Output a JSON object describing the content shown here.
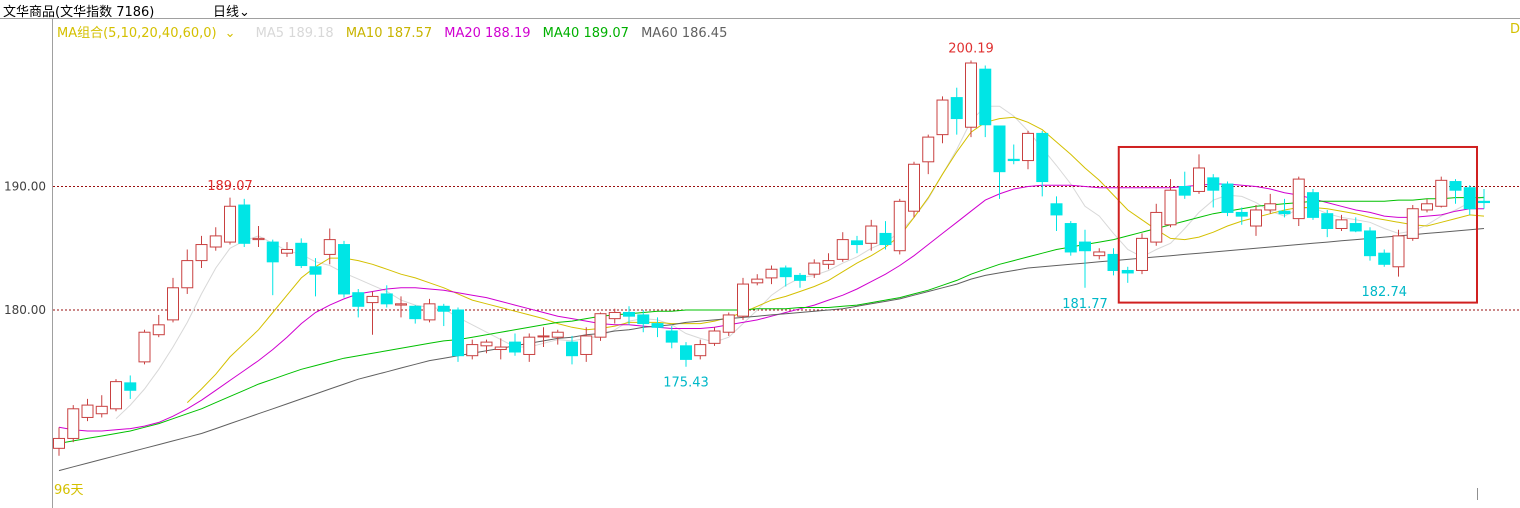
{
  "header": {
    "title": "文华商品(文华指数 7186)",
    "period": "日线",
    "period_chevron_icon": "chevron-down-icon"
  },
  "ma_legend": {
    "combo_label": "MA组合(5,10,20,40,60,0)",
    "combo_chevron_icon": "chevron-down-icon",
    "items": [
      {
        "label": "MA5 189.18",
        "color": "#d8d8d8"
      },
      {
        "label": "MA10 187.57",
        "color": "#d4c000"
      },
      {
        "label": "MA20 188.19",
        "color": "#d000d0"
      },
      {
        "label": "MA40 189.07",
        "color": "#00c000"
      },
      {
        "label": "MA60 186.45",
        "color": "#606060"
      }
    ],
    "edge_label": "D"
  },
  "colors": {
    "up": "#c84040",
    "down": "#00e5e5",
    "ref_line": "#9a1010",
    "highlight_box": "#d02020",
    "axis_text": "#404040",
    "label_red": "#e03030",
    "label_cyan": "#00b8c8"
  },
  "chart_data": {
    "type": "candlestick",
    "title": "",
    "ylim": [
      166,
      202
    ],
    "yticks": [
      {
        "value": 190,
        "label": "190.00"
      },
      {
        "value": 180,
        "label": "180.00"
      }
    ],
    "ref_lines": [
      190,
      180
    ],
    "candles": [
      [
        168.8,
        169.6,
        170.5,
        168.2
      ],
      [
        169.6,
        172.0,
        172.3,
        169.3
      ],
      [
        171.3,
        172.3,
        172.8,
        171.0
      ],
      [
        171.6,
        172.2,
        173.1,
        171.3
      ],
      [
        172.0,
        174.2,
        174.4,
        171.8
      ],
      [
        174.1,
        173.5,
        174.7,
        172.8
      ],
      [
        175.8,
        178.2,
        178.4,
        175.6
      ],
      [
        178.0,
        178.8,
        179.6,
        177.8
      ],
      [
        179.2,
        181.8,
        182.6,
        179.0
      ],
      [
        181.8,
        184.0,
        184.9,
        181.3
      ],
      [
        184.0,
        185.3,
        186.0,
        183.4
      ],
      [
        185.1,
        186.0,
        186.7,
        184.8
      ],
      [
        185.5,
        188.4,
        189.1,
        185.3
      ],
      [
        188.5,
        185.4,
        189.0,
        185.1
      ],
      [
        185.7,
        185.8,
        186.8,
        185.1
      ],
      [
        185.5,
        183.9,
        185.7,
        181.2
      ],
      [
        184.6,
        184.9,
        185.5,
        184.3
      ],
      [
        185.4,
        183.6,
        185.8,
        183.4
      ],
      [
        183.5,
        182.9,
        184.2,
        181.1
      ],
      [
        184.5,
        185.7,
        186.6,
        183.7
      ],
      [
        185.3,
        181.3,
        185.6,
        181.0
      ],
      [
        181.4,
        180.3,
        181.7,
        179.4
      ],
      [
        180.6,
        181.1,
        181.5,
        178.0
      ],
      [
        181.3,
        180.5,
        182.0,
        180.2
      ],
      [
        180.4,
        180.5,
        181.1,
        179.4
      ],
      [
        180.3,
        179.3,
        180.4,
        178.9
      ],
      [
        179.2,
        180.5,
        180.9,
        179.0
      ],
      [
        180.3,
        179.9,
        180.5,
        178.7
      ],
      [
        180.0,
        176.3,
        180.2,
        175.8
      ],
      [
        176.3,
        177.2,
        177.6,
        176.0
      ],
      [
        177.1,
        177.4,
        177.6,
        176.5
      ],
      [
        176.8,
        177.0,
        177.7,
        176.0
      ],
      [
        177.4,
        176.6,
        178.1,
        176.3
      ],
      [
        176.4,
        177.8,
        178.1,
        175.8
      ],
      [
        177.9,
        177.9,
        178.6,
        177.0
      ],
      [
        177.8,
        178.2,
        178.4,
        177.2
      ],
      [
        177.4,
        176.3,
        177.9,
        175.6
      ],
      [
        176.4,
        177.9,
        178.6,
        175.8
      ],
      [
        177.8,
        179.7,
        179.8,
        177.5
      ],
      [
        179.3,
        179.8,
        180.1,
        178.9
      ],
      [
        179.8,
        179.5,
        180.3,
        178.8
      ],
      [
        179.6,
        178.9,
        180.0,
        178.2
      ],
      [
        178.9,
        178.6,
        179.4,
        177.8
      ],
      [
        178.3,
        177.4,
        178.7,
        176.9
      ],
      [
        177.1,
        176.0,
        177.4,
        175.4
      ],
      [
        176.3,
        177.2,
        177.6,
        176.0
      ],
      [
        177.3,
        178.3,
        178.6,
        177.1
      ],
      [
        178.2,
        179.6,
        179.8,
        177.9
      ],
      [
        179.5,
        182.1,
        182.6,
        179.2
      ],
      [
        182.2,
        182.5,
        182.9,
        182.0
      ],
      [
        182.6,
        183.3,
        183.6,
        182.1
      ],
      [
        183.4,
        182.7,
        183.6,
        181.9
      ],
      [
        182.8,
        182.4,
        183.0,
        181.8
      ],
      [
        182.9,
        183.8,
        184.1,
        182.6
      ],
      [
        183.7,
        184.0,
        184.6,
        183.3
      ],
      [
        184.1,
        185.7,
        186.3,
        183.9
      ],
      [
        185.6,
        185.3,
        186.0,
        184.6
      ],
      [
        185.4,
        186.8,
        187.3,
        184.8
      ],
      [
        186.2,
        185.3,
        187.2,
        184.9
      ],
      [
        184.8,
        188.8,
        189.0,
        184.5
      ],
      [
        188.0,
        191.8,
        192.0,
        187.5
      ],
      [
        192.0,
        194.0,
        194.2,
        191.0
      ],
      [
        194.2,
        197.0,
        197.3,
        193.5
      ],
      [
        197.2,
        195.5,
        198.0,
        194.2
      ],
      [
        194.8,
        200.0,
        200.2,
        194.0
      ],
      [
        199.5,
        195.0,
        199.8,
        194.0
      ],
      [
        194.9,
        191.2,
        194.7,
        189.0
      ],
      [
        192.2,
        192.1,
        193.4,
        191.8
      ],
      [
        192.1,
        194.3,
        194.5,
        191.4
      ],
      [
        194.3,
        190.4,
        194.5,
        189.2
      ],
      [
        188.6,
        187.7,
        189.2,
        186.4
      ],
      [
        187.0,
        184.7,
        187.2,
        184.4
      ],
      [
        185.5,
        184.8,
        186.5,
        181.8
      ],
      [
        184.4,
        184.7,
        185.0,
        184.1
      ],
      [
        184.5,
        183.2,
        185.0,
        182.8
      ],
      [
        183.2,
        183.0,
        183.5,
        182.2
      ],
      [
        183.2,
        185.8,
        186.2,
        182.9
      ],
      [
        185.5,
        187.9,
        188.6,
        185.2
      ],
      [
        186.9,
        189.7,
        190.6,
        186.7
      ],
      [
        190.0,
        189.3,
        191.2,
        189.0
      ],
      [
        189.6,
        191.5,
        192.6,
        189.4
      ],
      [
        190.7,
        189.7,
        191.0,
        188.3
      ],
      [
        190.2,
        187.9,
        190.4,
        187.6
      ],
      [
        187.9,
        187.6,
        188.3,
        186.9
      ],
      [
        186.8,
        188.1,
        188.5,
        186.0
      ],
      [
        188.1,
        188.6,
        189.4,
        187.8
      ],
      [
        188.0,
        187.8,
        189.0,
        187.5
      ],
      [
        187.4,
        190.6,
        190.8,
        186.8
      ],
      [
        189.5,
        187.5,
        189.8,
        187.3
      ],
      [
        187.8,
        186.6,
        188.1,
        185.9
      ],
      [
        186.6,
        187.3,
        187.7,
        186.4
      ],
      [
        187.0,
        186.4,
        187.5,
        186.3
      ],
      [
        186.4,
        184.4,
        186.7,
        184.0
      ],
      [
        184.6,
        183.7,
        184.9,
        183.5
      ],
      [
        183.5,
        186.0,
        186.5,
        182.7
      ],
      [
        185.8,
        188.2,
        188.5,
        185.6
      ],
      [
        188.1,
        188.6,
        189.0,
        187.9
      ],
      [
        188.4,
        190.5,
        190.8,
        188.3
      ],
      [
        190.4,
        189.7,
        190.6,
        188.6
      ],
      [
        189.9,
        188.2,
        190.1,
        187.7
      ],
      [
        188.8,
        188.7,
        189.8,
        188.2
      ]
    ],
    "ma_series": [
      {
        "name": "MA5",
        "color": "#d8d8d8",
        "values": [
          null,
          null,
          null,
          null,
          171.2,
          172.3,
          173.6,
          175.2,
          177.0,
          179.0,
          181.3,
          183.4,
          185.0,
          185.6,
          186.0,
          185.4,
          184.8,
          184.5,
          183.9,
          183.6,
          183.0,
          182.5,
          182.0,
          181.5,
          180.8,
          180.4,
          180.2,
          180.1,
          179.4,
          178.8,
          178.2,
          177.6,
          177.0,
          177.0,
          177.3,
          177.6,
          177.5,
          177.7,
          177.9,
          178.4,
          179.1,
          179.3,
          179.2,
          178.8,
          178.1,
          177.7,
          177.4,
          177.8,
          178.9,
          180.0,
          181.2,
          182.0,
          182.6,
          182.8,
          183.2,
          183.8,
          184.3,
          185.0,
          185.5,
          186.3,
          187.5,
          189.0,
          191.0,
          193.0,
          195.3,
          196.5,
          196.5,
          195.7,
          194.5,
          193.1,
          191.7,
          190.2,
          188.4,
          187.6,
          186.2,
          184.9,
          184.3,
          184.9,
          185.4,
          186.6,
          187.9,
          188.9,
          189.3,
          189.2,
          188.7,
          188.0,
          187.6,
          188.2,
          188.3,
          187.8,
          187.5,
          187.3,
          187.1,
          186.6,
          186.2,
          186.4,
          186.9,
          187.6,
          188.1,
          188.7,
          189.2
        ]
      },
      {
        "name": "MA10",
        "color": "#d4c000",
        "values": [
          null,
          null,
          null,
          null,
          null,
          null,
          null,
          null,
          null,
          172.5,
          173.6,
          174.8,
          176.2,
          177.3,
          178.4,
          179.8,
          181.2,
          182.6,
          183.5,
          184.2,
          184.2,
          184.0,
          183.7,
          183.3,
          182.9,
          182.6,
          182.2,
          181.8,
          181.3,
          180.8,
          180.5,
          180.2,
          179.9,
          179.6,
          179.3,
          178.9,
          178.6,
          178.4,
          178.5,
          178.7,
          179.0,
          179.0,
          179.0,
          178.9,
          178.9,
          178.9,
          179.1,
          179.4,
          179.8,
          180.3,
          180.8,
          181.1,
          181.5,
          181.9,
          182.4,
          183.1,
          183.8,
          184.4,
          185.1,
          186.0,
          187.5,
          189.1,
          191.0,
          192.8,
          194.4,
          195.2,
          195.5,
          195.6,
          195.2,
          194.6,
          193.6,
          192.6,
          191.5,
          190.5,
          189.3,
          188.1,
          187.3,
          186.5,
          185.8,
          185.7,
          185.9,
          186.3,
          186.8,
          187.2,
          187.5,
          187.8,
          188.1,
          188.3,
          188.3,
          188.2,
          188.0,
          187.8,
          187.5,
          187.3,
          187.1,
          186.9,
          186.8,
          187.1,
          187.4,
          187.7,
          187.6
        ]
      },
      {
        "name": "MA20",
        "color": "#d000d0",
        "values": [
          170.5,
          170.3,
          170.2,
          170.2,
          170.3,
          170.4,
          170.6,
          170.9,
          171.4,
          172.0,
          172.7,
          173.5,
          174.3,
          175.1,
          175.9,
          176.8,
          177.8,
          178.9,
          179.8,
          180.4,
          180.9,
          181.3,
          181.5,
          181.7,
          181.8,
          181.8,
          181.7,
          181.6,
          181.4,
          181.2,
          181.0,
          180.7,
          180.4,
          180.1,
          179.8,
          179.5,
          179.3,
          179.1,
          178.9,
          178.8,
          178.8,
          178.7,
          178.6,
          178.5,
          178.5,
          178.5,
          178.6,
          178.8,
          179.0,
          179.2,
          179.5,
          179.8,
          180.1,
          180.4,
          180.8,
          181.2,
          181.7,
          182.3,
          182.9,
          183.6,
          184.4,
          185.3,
          186.2,
          187.1,
          188.0,
          188.9,
          189.4,
          189.8,
          190.0,
          190.1,
          190.1,
          190.1,
          190.0,
          189.9,
          189.9,
          189.9,
          189.9,
          189.9,
          189.9,
          190.0,
          190.1,
          190.2,
          190.2,
          190.1,
          190.0,
          189.8,
          189.5,
          189.3,
          189.0,
          188.7,
          188.4,
          188.1,
          187.9,
          187.6,
          187.5,
          187.5,
          187.6,
          187.7,
          188.0,
          188.2,
          188.2
        ]
      },
      {
        "name": "MA40",
        "color": "#00c000",
        "values": [
          169.2,
          169.4,
          169.6,
          169.8,
          170.0,
          170.2,
          170.5,
          170.8,
          171.2,
          171.6,
          172.0,
          172.5,
          173.0,
          173.5,
          174.0,
          174.4,
          174.8,
          175.2,
          175.5,
          175.8,
          176.1,
          176.3,
          176.5,
          176.7,
          176.9,
          177.1,
          177.3,
          177.5,
          177.6,
          177.8,
          178.0,
          178.2,
          178.4,
          178.6,
          178.8,
          179.0,
          179.1,
          179.3,
          179.5,
          179.6,
          179.7,
          179.8,
          179.9,
          179.9,
          180.0,
          180.0,
          180.0,
          180.0,
          180.0,
          180.1,
          180.1,
          180.1,
          180.2,
          180.2,
          180.2,
          180.3,
          180.4,
          180.6,
          180.8,
          181.0,
          181.3,
          181.6,
          182.0,
          182.4,
          182.9,
          183.3,
          183.7,
          184.0,
          184.3,
          184.6,
          184.9,
          185.1,
          185.3,
          185.5,
          185.7,
          186.0,
          186.3,
          186.6,
          186.9,
          187.2,
          187.5,
          187.8,
          188.0,
          188.2,
          188.4,
          188.5,
          188.6,
          188.7,
          188.8,
          188.8,
          188.8,
          188.8,
          188.8,
          188.8,
          188.9,
          188.9,
          189.0,
          189.0,
          189.1,
          189.1,
          189.1
        ]
      },
      {
        "name": "MA60",
        "color": "#606060",
        "values": [
          167.0,
          167.3,
          167.6,
          167.9,
          168.2,
          168.5,
          168.8,
          169.1,
          169.4,
          169.7,
          170.0,
          170.4,
          170.8,
          171.2,
          171.6,
          172.0,
          172.4,
          172.8,
          173.2,
          173.6,
          174.0,
          174.4,
          174.7,
          175.0,
          175.3,
          175.6,
          175.9,
          176.1,
          176.3,
          176.5,
          176.7,
          176.9,
          177.1,
          177.3,
          177.5,
          177.7,
          177.8,
          178.0,
          178.1,
          178.3,
          178.4,
          178.6,
          178.7,
          178.8,
          179.0,
          179.1,
          179.2,
          179.3,
          179.4,
          179.5,
          179.6,
          179.7,
          179.8,
          179.9,
          180.0,
          180.1,
          180.3,
          180.5,
          180.7,
          180.9,
          181.2,
          181.5,
          181.8,
          182.1,
          182.5,
          182.8,
          183.0,
          183.2,
          183.4,
          183.5,
          183.6,
          183.7,
          183.8,
          183.9,
          184.0,
          184.1,
          184.2,
          184.3,
          184.4,
          184.5,
          184.6,
          184.7,
          184.8,
          184.9,
          185.0,
          185.1,
          185.2,
          185.3,
          185.4,
          185.5,
          185.6,
          185.7,
          185.8,
          185.9,
          186.0,
          186.1,
          186.2,
          186.3,
          186.4,
          186.5,
          186.6
        ]
      }
    ],
    "annotations": [
      {
        "text": "189.07",
        "candle": 12,
        "value": 189.07,
        "pos": "above",
        "tone": "red"
      },
      {
        "text": "200.19",
        "candle": 64,
        "value": 200.19,
        "pos": "above",
        "tone": "red"
      },
      {
        "text": "175.43",
        "candle": 44,
        "value": 175.43,
        "pos": "below",
        "tone": "cyan"
      },
      {
        "text": "181.77",
        "candle": 72,
        "value": 181.77,
        "pos": "below",
        "tone": "cyan"
      },
      {
        "text": "182.74",
        "candle": 93,
        "value": 182.74,
        "pos": "below",
        "tone": "cyan"
      }
    ],
    "highlight_range": {
      "from_candle": 75,
      "to_candle": 100,
      "value_top": 193.2,
      "value_bottom": 180.6
    },
    "bottom_label": "96天"
  }
}
